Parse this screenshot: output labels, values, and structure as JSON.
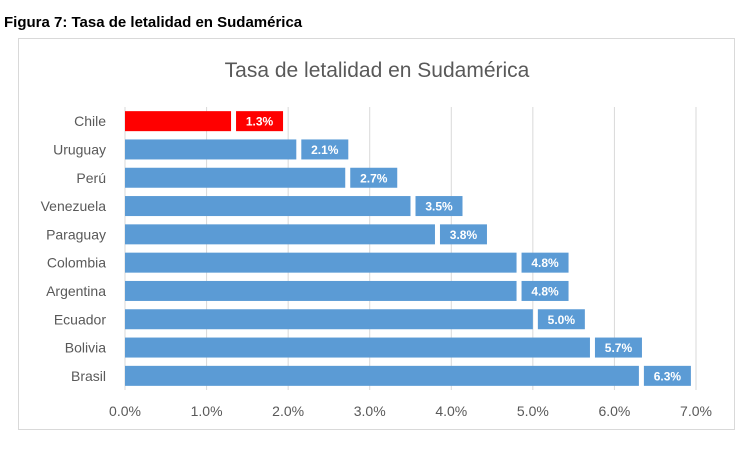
{
  "figure_caption": "Figura 7: Tasa de letalidad en Sudamérica",
  "chart_data": {
    "type": "bar",
    "orientation": "horizontal",
    "title": "Tasa de letalidad en Sudamérica",
    "categories": [
      "Chile",
      "Uruguay",
      "Perú",
      "Venezuela",
      "Paraguay",
      "Colombia",
      "Argentina",
      "Ecuador",
      "Bolivia",
      "Brasil"
    ],
    "values": [
      1.3,
      2.1,
      2.7,
      3.5,
      3.8,
      4.8,
      4.8,
      5.0,
      5.7,
      6.3
    ],
    "value_labels": [
      "1.3%",
      "2.1%",
      "2.7%",
      "3.5%",
      "3.8%",
      "4.8%",
      "4.8%",
      "5.0%",
      "5.7%",
      "6.3%"
    ],
    "bar_colors": [
      "#ff0000",
      "#5b9bd5",
      "#5b9bd5",
      "#5b9bd5",
      "#5b9bd5",
      "#5b9bd5",
      "#5b9bd5",
      "#5b9bd5",
      "#5b9bd5",
      "#5b9bd5"
    ],
    "xlim": [
      0,
      7
    ],
    "x_ticks": [
      0,
      1,
      2,
      3,
      4,
      5,
      6,
      7
    ],
    "x_tick_labels": [
      "0.0%",
      "1.0%",
      "2.0%",
      "3.0%",
      "4.0%",
      "5.0%",
      "6.0%",
      "7.0%"
    ],
    "xlabel": "",
    "ylabel": "",
    "grid": "vertical",
    "legend": "none"
  }
}
